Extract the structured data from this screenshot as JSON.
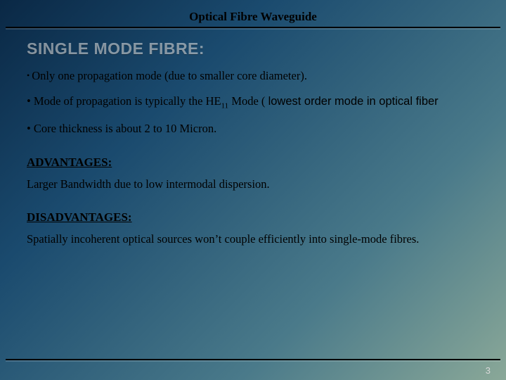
{
  "header": {
    "title": "Optical Fibre Waveguide"
  },
  "section": {
    "title": "SINGLE MODE FIBRE:"
  },
  "bullets": {
    "b1": "Only one propagation mode (due to smaller core diameter).",
    "b2_pre": "• Mode of propagation is typically the HE",
    "b2_sub": "11",
    "b2_mid": " Mode ( ",
    "b2_sans": "lowest order mode in optical fiber",
    "b3": "• Core thickness is about 2 to 10 Micron."
  },
  "advantages": {
    "title": "ADVANTAGES:",
    "text": "Larger Bandwidth due to low intermodal dispersion."
  },
  "disadvantages": {
    "title": "DISADVANTAGES:",
    "text": "Spatially incoherent optical sources won’t couple efficiently into single-mode fibres."
  },
  "page_number": "3"
}
